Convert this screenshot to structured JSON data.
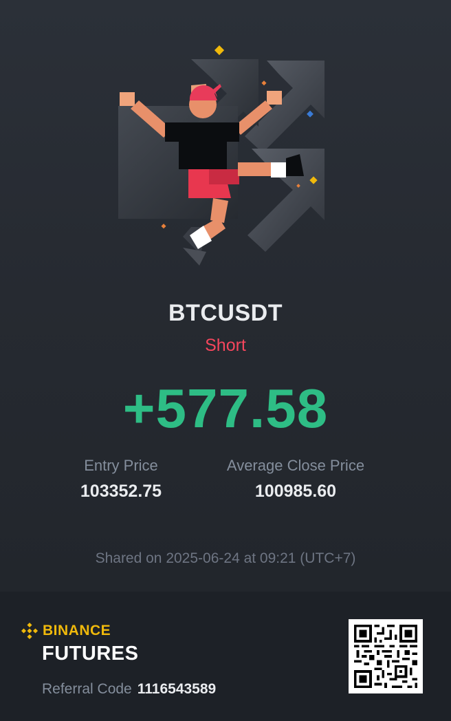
{
  "trade": {
    "symbol": "BTCUSDT",
    "side": "Short",
    "pnl": "+577.58"
  },
  "prices": {
    "entry_label": "Entry Price",
    "entry_value": "103352.75",
    "close_label": "Average Close Price",
    "close_value": "100985.60"
  },
  "shared_text": "Shared on 2025-06-24 at 09:21 (UTC+7)",
  "footer": {
    "brand": "BINANCE",
    "product": "FUTURES",
    "referral_label": "Referral Code",
    "referral_code": "1116543589"
  },
  "colors": {
    "short": "#f6465d",
    "profit": "#2ebd85",
    "brand": "#f0b90b"
  },
  "icons": [
    "binance-logo-icon",
    "qr-code-icon",
    "celebration-illustration"
  ]
}
